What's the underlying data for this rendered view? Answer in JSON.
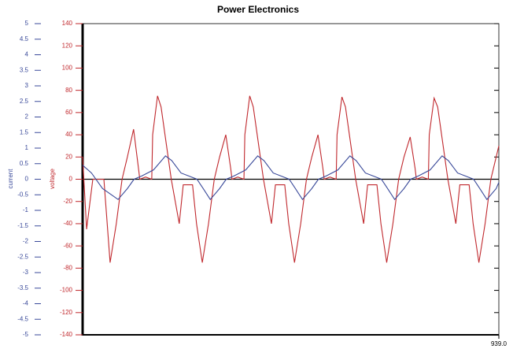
{
  "chart_data": {
    "type": "line",
    "title": "Power Electronics",
    "y_label": "voltage",
    "y2_label": "current",
    "xlim": [
      0,
      939
    ],
    "xticks": [
      {
        "value": 939,
        "label": "939.0"
      }
    ],
    "ylim": [
      -140,
      140
    ],
    "yticks": [
      -140,
      -120,
      -100,
      -80,
      -60,
      -40,
      -20,
      0,
      20,
      40,
      60,
      80,
      100,
      120,
      140
    ],
    "y2lim": [
      -5,
      5
    ],
    "y2ticks": [
      -5,
      -4.5,
      -4,
      -3.5,
      -3,
      -2.5,
      -2,
      -1.5,
      -1,
      -0.5,
      0,
      0.5,
      1,
      1.5,
      2,
      2.5,
      3,
      3.5,
      4,
      4.5,
      5
    ],
    "y_color": "#c0282d",
    "y2_color": "#3a4a9a",
    "series": [
      {
        "color": "#c0282d",
        "axis": "y",
        "x": [
          0,
          9,
          23,
          48,
          62,
          76,
          89,
          101,
          115,
          126,
          129,
          142,
          156,
          158,
          169,
          177,
          200,
          218,
          227,
          248,
          257,
          270,
          284,
          297,
          309,
          323,
          334,
          337,
          350,
          364,
          366,
          377,
          385,
          408,
          426,
          435,
          456,
          465,
          478,
          492,
          505,
          517,
          531,
          542,
          545,
          558,
          572,
          574,
          585,
          593,
          616,
          634,
          643,
          664,
          673,
          686,
          700,
          713,
          725,
          739,
          750,
          753,
          766,
          780,
          782,
          793,
          801,
          824,
          842,
          851,
          872,
          881,
          894,
          908,
          921,
          933,
          939
        ],
        "values": [
          20,
          -45,
          0,
          0,
          -75,
          -40,
          0,
          20,
          45,
          10,
          0,
          2,
          0,
          40,
          75,
          65,
          0,
          -40,
          -5,
          -5,
          -40,
          -75,
          -40,
          0,
          20,
          40,
          10,
          0,
          2,
          0,
          40,
          75,
          65,
          0,
          -40,
          -5,
          -5,
          -40,
          -75,
          -40,
          0,
          20,
          40,
          10,
          0,
          2,
          0,
          40,
          74,
          65,
          0,
          -40,
          -5,
          -5,
          -40,
          -75,
          -40,
          0,
          20,
          38,
          10,
          0,
          2,
          0,
          40,
          73,
          65,
          0,
          -40,
          -5,
          -5,
          -40,
          -75,
          -40,
          0,
          20,
          30
        ]
      },
      {
        "color": "#3a4a9a",
        "axis": "y2",
        "x": [
          0,
          20,
          45,
          80,
          101,
          116,
          133,
          160,
          187,
          201,
          222,
          240,
          258,
          272,
          288,
          309,
          324,
          341,
          368,
          395,
          409,
          430,
          448,
          466,
          480,
          496,
          517,
          532,
          549,
          576,
          603,
          617,
          638,
          656,
          674,
          688,
          704,
          725,
          740,
          757,
          784,
          811,
          825,
          846,
          864,
          882,
          896,
          912,
          933,
          939
        ],
        "values": [
          0.45,
          0.2,
          -0.3,
          -0.65,
          -0.3,
          0,
          0.1,
          0.3,
          0.75,
          0.6,
          0.2,
          0.1,
          0,
          -0.3,
          -0.65,
          -0.3,
          0,
          0.1,
          0.3,
          0.75,
          0.6,
          0.2,
          0.1,
          0,
          -0.3,
          -0.65,
          -0.3,
          0,
          0.1,
          0.3,
          0.75,
          0.6,
          0.2,
          0.1,
          0,
          -0.3,
          -0.65,
          -0.3,
          0,
          0.1,
          0.3,
          0.75,
          0.6,
          0.2,
          0.1,
          0,
          -0.3,
          -0.65,
          -0.3,
          -0.1
        ]
      }
    ]
  }
}
